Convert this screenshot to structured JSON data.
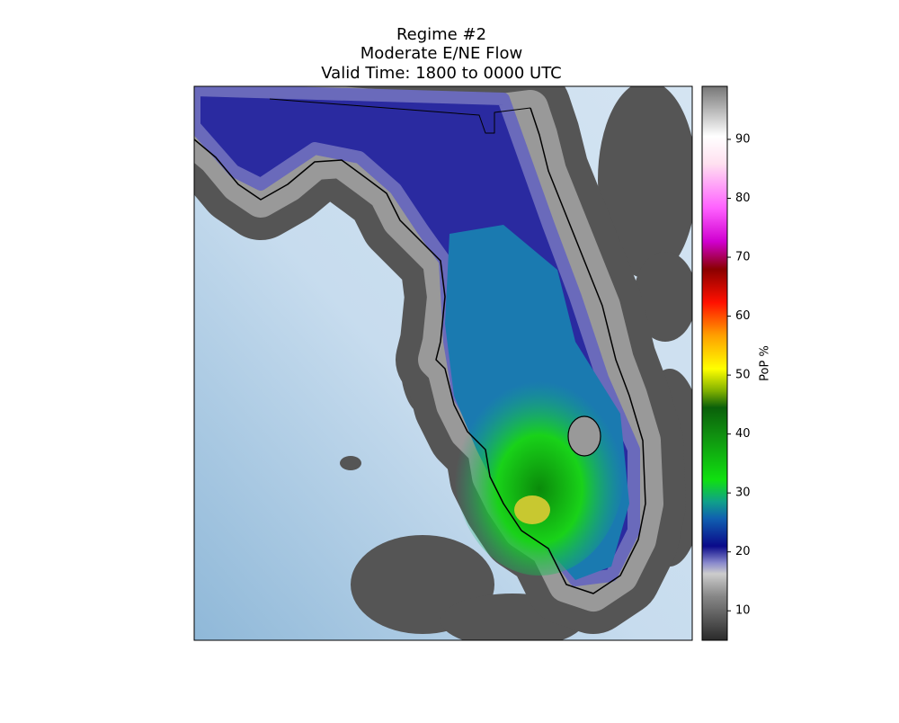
{
  "title": [
    "Regime #2",
    "Moderate E/NE Flow",
    "Valid Time: 1800 to 0000 UTC"
  ],
  "colorbar": {
    "label": "PoP %",
    "lim": [
      5,
      99
    ],
    "ticks": [
      10,
      20,
      30,
      40,
      50,
      60,
      70,
      80,
      90
    ]
  }
}
